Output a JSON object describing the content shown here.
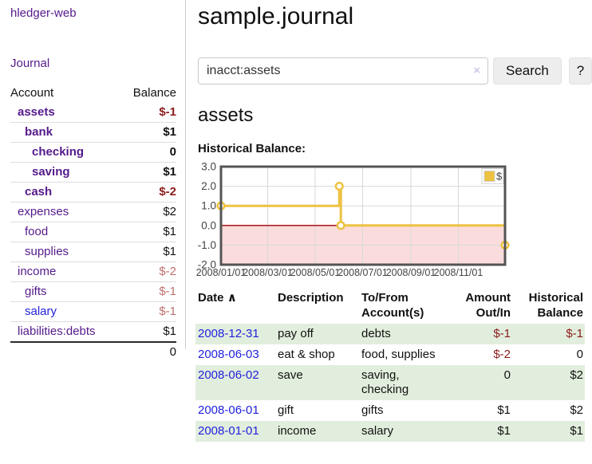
{
  "brand": "hledger-web",
  "nav": {
    "journal": "Journal"
  },
  "sidebar": {
    "col_account": "Account",
    "col_balance": "Balance",
    "accounts": [
      {
        "name": "assets",
        "depth": 1,
        "balance": "$-1",
        "bold": true,
        "neg": "strong",
        "blue": false
      },
      {
        "name": "bank",
        "depth": 2,
        "balance": "$1",
        "bold": true,
        "neg": "none",
        "blue": false
      },
      {
        "name": "checking",
        "depth": 3,
        "balance": "0",
        "bold": true,
        "neg": "none",
        "blue": false
      },
      {
        "name": "saving",
        "depth": 3,
        "balance": "$1",
        "bold": true,
        "neg": "none",
        "blue": false
      },
      {
        "name": "cash",
        "depth": 2,
        "balance": "$-2",
        "bold": true,
        "neg": "strong",
        "blue": false
      },
      {
        "name": "expenses",
        "depth": 1,
        "balance": "$2",
        "bold": false,
        "neg": "none",
        "blue": false
      },
      {
        "name": "food",
        "depth": 2,
        "balance": "$1",
        "bold": false,
        "neg": "none",
        "blue": false
      },
      {
        "name": "supplies",
        "depth": 2,
        "balance": "$1",
        "bold": false,
        "neg": "none",
        "blue": false
      },
      {
        "name": "income",
        "depth": 1,
        "balance": "$-2",
        "bold": false,
        "neg": "soft",
        "blue": false
      },
      {
        "name": "gifts",
        "depth": 2,
        "balance": "$-1",
        "bold": false,
        "neg": "soft",
        "blue": false
      },
      {
        "name": "salary",
        "depth": 2,
        "balance": "$-1",
        "bold": false,
        "neg": "soft",
        "blue": true
      },
      {
        "name": "liabilities:debts",
        "depth": 1,
        "balance": "$1",
        "bold": false,
        "neg": "none",
        "blue": false
      }
    ],
    "total": "0"
  },
  "main": {
    "title": "sample.journal",
    "search": {
      "value": "inacct:assets",
      "clear": "×",
      "button": "Search",
      "help": "?"
    },
    "heading": "assets",
    "chart_label": "Historical Balance:"
  },
  "chart_data": {
    "type": "line",
    "title": "Historical Balance",
    "step": true,
    "series": [
      {
        "name": "$",
        "color": "#edc240",
        "points": [
          [
            "2008-01-01",
            1
          ],
          [
            "2008-06-01",
            2
          ],
          [
            "2008-06-03",
            0
          ],
          [
            "2008-12-31",
            -1
          ]
        ]
      }
    ],
    "xrange": [
      "2008-01-01",
      "2008-12-31"
    ],
    "ylim": [
      -2,
      3
    ],
    "yticks": [
      3.0,
      2.0,
      1.0,
      0.0,
      -1.0,
      -2.0
    ],
    "xticks": [
      {
        "date": "2008-01-01",
        "label": "2008/01/01"
      },
      {
        "date": "2008-03-01",
        "label": "2008/03/01"
      },
      {
        "date": "2008-05-01",
        "label": "2008/05/01"
      },
      {
        "date": "2008-07-01",
        "label": "2008/07/01"
      },
      {
        "date": "2008-09-01",
        "label": "2008/09/01"
      },
      {
        "date": "2008-11-01",
        "label": "2008/11/01"
      }
    ],
    "legend": {
      "label": "$",
      "position": "top-right"
    },
    "grid": true,
    "colors": {
      "line": "#edc240",
      "marker_fill": "#ffffff",
      "negative_fill": "#fbdcdc",
      "zero_line": "#a40000",
      "grid": "#d8d8d8",
      "border": "#545454",
      "tick_text": "#444444"
    }
  },
  "register": {
    "headers": {
      "date": "Date",
      "sort_indicator": "∧",
      "description": "Description",
      "accounts": "To/From Account(s)",
      "amount": "Amount Out/In",
      "balance": "Historical Balance"
    },
    "rows": [
      {
        "date": "2008-12-31",
        "description": "pay off",
        "accounts": "debts",
        "amount": "$-1",
        "amount_neg": true,
        "balance": "$-1",
        "balance_neg": true
      },
      {
        "date": "2008-06-03",
        "description": "eat & shop",
        "accounts": "food, supplies",
        "amount": "$-2",
        "amount_neg": true,
        "balance": "0",
        "balance_neg": false
      },
      {
        "date": "2008-06-02",
        "description": "save",
        "accounts": "saving, checking",
        "amount": "0",
        "amount_neg": false,
        "balance": "$2",
        "balance_neg": false
      },
      {
        "date": "2008-06-01",
        "description": "gift",
        "accounts": "gifts",
        "amount": "$1",
        "amount_neg": false,
        "balance": "$2",
        "balance_neg": false
      },
      {
        "date": "2008-01-01",
        "description": "income",
        "accounts": "salary",
        "amount": "$1",
        "amount_neg": false,
        "balance": "$1",
        "balance_neg": false
      }
    ]
  }
}
